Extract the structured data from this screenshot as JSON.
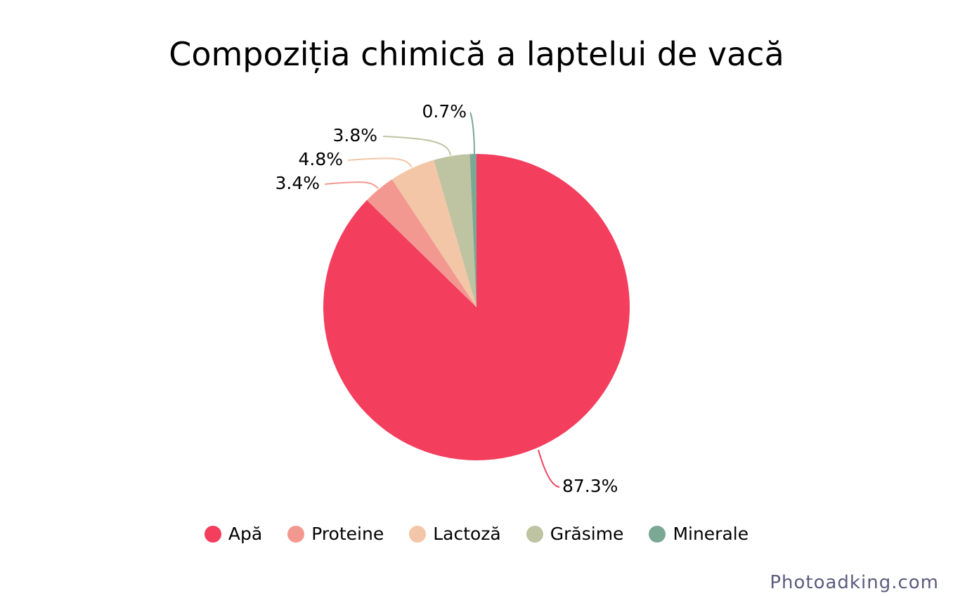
{
  "chart_data": {
    "type": "pie",
    "title": "Compoziția chimică a laptelui de vacă",
    "slices": [
      {
        "name": "Apă",
        "value": 87.3,
        "label": "87.3%",
        "color": "#f43e5e"
      },
      {
        "name": "Proteine",
        "value": 3.4,
        "label": "3.4%",
        "color": "#f39891"
      },
      {
        "name": "Lactoză",
        "value": 4.8,
        "label": "4.8%",
        "color": "#f2c6a6"
      },
      {
        "name": "Grăsime",
        "value": 3.8,
        "label": "3.8%",
        "color": "#bec3a1"
      },
      {
        "name": "Minerale",
        "value": 0.7,
        "label": "0.7%",
        "color": "#7aa894"
      }
    ],
    "legend_position": "bottom"
  },
  "watermark": "Photoadking.com"
}
